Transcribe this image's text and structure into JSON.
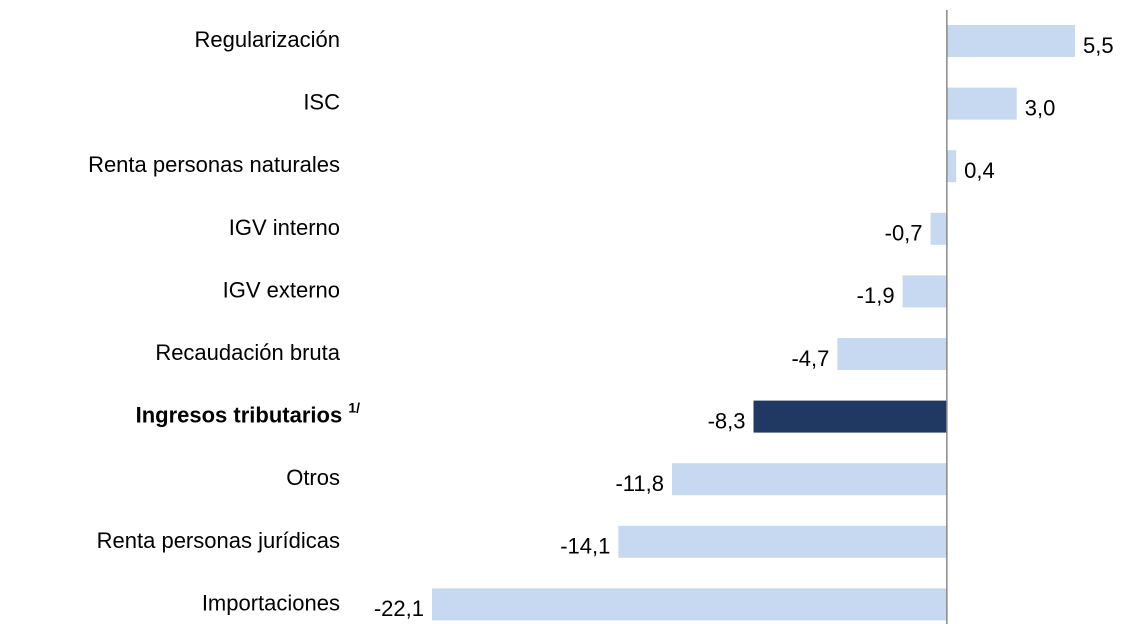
{
  "chart_data": {
    "type": "bar",
    "orientation": "horizontal",
    "categories": [
      "Regularización",
      "ISC",
      "Renta personas naturales",
      "IGV interno",
      "IGV externo",
      "Recaudación bruta",
      "Ingresos tributarios",
      "Otros",
      "Renta personas jurídicas",
      "Importaciones"
    ],
    "category_notes": [
      null,
      null,
      null,
      null,
      null,
      null,
      "1/",
      null,
      null,
      null
    ],
    "values": [
      5.5,
      3.0,
      0.4,
      -0.7,
      -1.9,
      -4.7,
      -8.3,
      -11.8,
      -14.1,
      -22.1
    ],
    "value_labels": [
      "5,5",
      "3,0",
      "0,4",
      "-0,7",
      "-1,9",
      "-4,7",
      "-8,3",
      "-11,8",
      "-14,1",
      "-22,1"
    ],
    "colors": [
      "#c6d9f1",
      "#c6d9f1",
      "#c6d9f1",
      "#c6d9f1",
      "#c6d9f1",
      "#c6d9f1",
      "#1f3864",
      "#c6d9f1",
      "#c6d9f1",
      "#c6d9f1"
    ],
    "bold": [
      false,
      false,
      false,
      false,
      false,
      false,
      true,
      false,
      false,
      false
    ]
  }
}
